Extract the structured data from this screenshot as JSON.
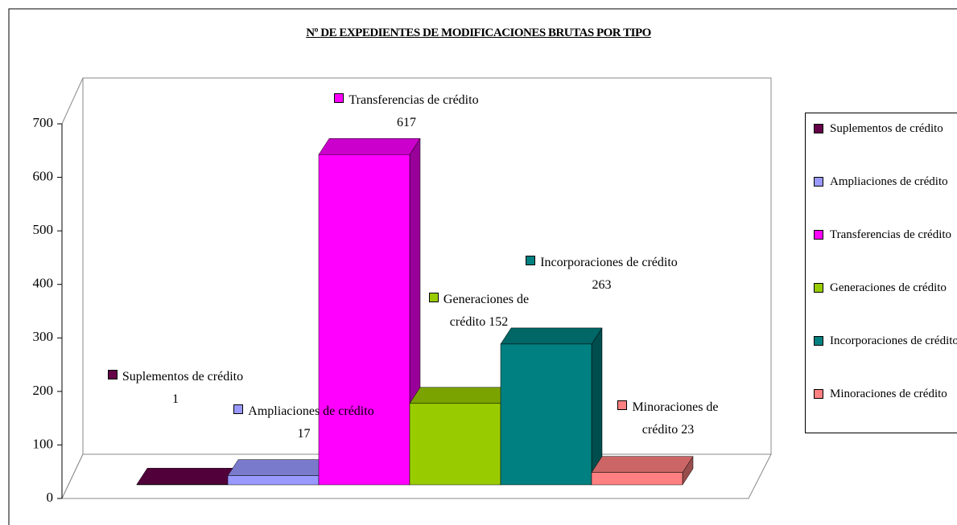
{
  "chart_data": {
    "type": "bar3d",
    "title": "Nº DE EXPEDIENTES DE MODIFICACIONES BRUTAS POR TIPO",
    "categories": [
      "Suplementos de crédito",
      "Ampliaciones de crédito",
      "Transferencias de crédito",
      "Generaciones de crédito",
      "Incorporaciones de crédito",
      "Minoraciones de crédito"
    ],
    "values": [
      1,
      17,
      617,
      152,
      263,
      23
    ],
    "colors": [
      "#660049",
      "#9999ff",
      "#ff00ff",
      "#99cc00",
      "#008080",
      "#ff8080"
    ],
    "ylim": [
      0,
      700
    ],
    "yticks": [
      0,
      100,
      200,
      300,
      400,
      500,
      600,
      700
    ],
    "legend": "right"
  }
}
